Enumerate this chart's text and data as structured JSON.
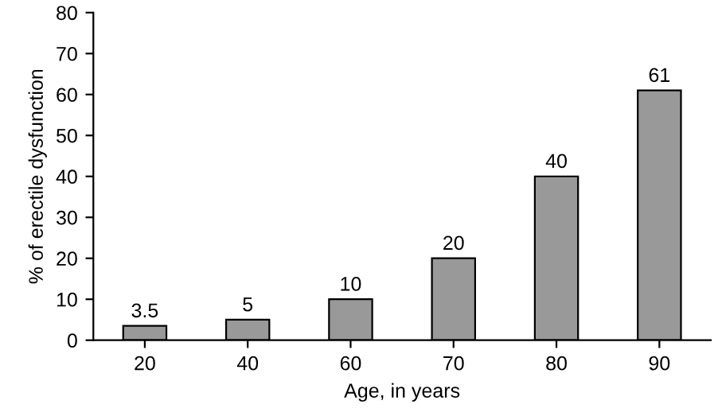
{
  "chart_data": {
    "type": "bar",
    "xlabel": "Age, in years",
    "ylabel": "% of erectile dysfunction",
    "categories": [
      "20",
      "40",
      "60",
      "70",
      "80",
      "90"
    ],
    "values": [
      3.5,
      5,
      10,
      20,
      40,
      61
    ],
    "color": "#999999",
    "ylim": [
      0,
      80
    ],
    "yticks": [
      0,
      10,
      20,
      30,
      40,
      50,
      60,
      70,
      80
    ],
    "grid": false,
    "data_labels": true
  }
}
